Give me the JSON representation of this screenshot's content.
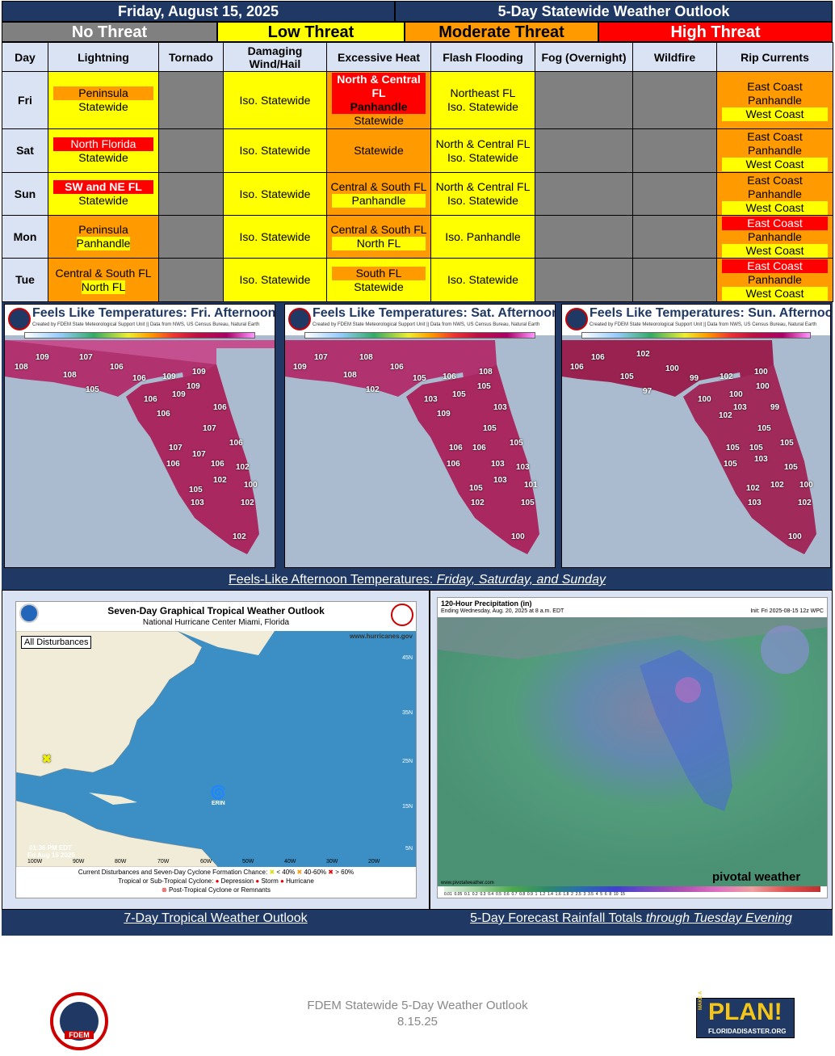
{
  "header": {
    "date": "Friday, August 15, 2025",
    "title": "5-Day Statewide Weather Outlook"
  },
  "legend": {
    "none": "No Threat",
    "low": "Low Threat",
    "moderate": "Moderate Threat",
    "high": "High Threat"
  },
  "colors": {
    "none": "#808080",
    "low": "#ffff00",
    "moderate": "#ff9a00",
    "high": "#ff0000",
    "navy": "#1f3864"
  },
  "columns": [
    "Day",
    "Lightning",
    "Tornado",
    "Damaging Wind/Hail",
    "Excessive Heat",
    "Flash Flooding",
    "Fog (Overnight)",
    "Wildfire",
    "Rip Currents"
  ],
  "rows": [
    {
      "day": "Fri",
      "lightning": [
        "Peninsula",
        "Statewide"
      ],
      "wind": "Iso. Statewide",
      "heat": [
        "North & Central FL",
        "Panhandle",
        "Statewide"
      ],
      "flood": [
        "Northeast FL",
        "Iso. Statewide"
      ],
      "rip": [
        "East Coast",
        "Panhandle",
        "West Coast"
      ]
    },
    {
      "day": "Sat",
      "lightning": [
        "North Florida",
        "Statewide"
      ],
      "wind": "Iso. Statewide",
      "heat": [
        "Statewide"
      ],
      "flood": [
        "North & Central FL",
        "Iso. Statewide"
      ],
      "rip": [
        "East Coast",
        "Panhandle",
        "West Coast"
      ]
    },
    {
      "day": "Sun",
      "lightning": [
        "SW and NE FL",
        "Statewide"
      ],
      "wind": "Iso. Statewide",
      "heat": [
        "Central & South FL",
        "Panhandle"
      ],
      "flood": [
        "North & Central FL",
        "Iso. Statewide"
      ],
      "rip": [
        "East Coast",
        "Panhandle",
        "West Coast"
      ]
    },
    {
      "day": "Mon",
      "lightning": [
        "Peninsula",
        "Panhandle"
      ],
      "wind": "Iso. Statewide",
      "heat": [
        "Central & South FL",
        "North FL"
      ],
      "flood": [
        "Iso. Panhandle"
      ],
      "rip": [
        "East Coast",
        "Panhandle",
        "West Coast"
      ]
    },
    {
      "day": "Tue",
      "lightning": [
        "Central & South FL",
        "North FL"
      ],
      "wind": "Iso. Statewide",
      "heat": [
        "South FL",
        "Statewide"
      ],
      "flood": [
        "Iso. Statewide"
      ],
      "rip": [
        "East Coast",
        "Panhandle",
        "West Coast"
      ]
    }
  ],
  "feels_like": {
    "subtitle": "Created by FDEM State Meteorological Support Unit || Data from NWS, US Census Bureau, Natural Earth",
    "scale": [
      "0",
      "10",
      "20",
      "30",
      "40",
      "50",
      "60",
      "70",
      "80",
      "90",
      "100",
      "110"
    ],
    "fri": {
      "title": "Feels Like Temperatures: Fri. Afternoon"
    },
    "sat": {
      "title": "Feels Like Temperatures: Sat. Afternoon"
    },
    "sun": {
      "title": "Feels Like Temperatures: Sun. Afternoon"
    },
    "caption_main": "Feels-Like Afternoon Temperatures: ",
    "caption_days": "Friday, Saturday, and Sunday"
  },
  "tropical": {
    "title": "Seven-Day Graphical Tropical Weather Outlook",
    "subtitle": "National Hurricane Center  Miami, Florida",
    "tab": "All Disturbances",
    "site": "www.hurricanes.gov",
    "time": "01:36 PM EDT",
    "date": "Fri Aug 15 2025",
    "storm": "ERIN",
    "lats": [
      "45N",
      "35N",
      "25N",
      "15N",
      "5N"
    ],
    "lons": [
      "100W",
      "90W",
      "80W",
      "70W",
      "60W",
      "50W",
      "40W",
      "30W",
      "20W"
    ],
    "legend1": "Current Disturbances and Seven-Day Cyclone Formation Chance:",
    "leg_low": "< 40%",
    "leg_mid": "40-60%",
    "leg_high": "> 60%",
    "legend2": "Tropical or Sub-Tropical Cyclone:",
    "leg_dep": "Depression",
    "leg_storm": "Storm",
    "leg_hur": "Hurricane",
    "legend3": "Post-Tropical Cyclone or Remnants",
    "caption": "7-Day Tropical Weather Outlook"
  },
  "rain": {
    "title": "120-Hour Precipitation (in)",
    "subtitle": "Ending Wednesday, Aug. 20, 2025 at 8 a.m. EDT",
    "init": "Init: Fri 2025-08-15 12z WPC",
    "brand": "pivotal weather",
    "site": "www.pivotalweather.com",
    "scale": [
      "0.01",
      "0.05",
      "0.1",
      "0.2",
      "0.3",
      "0.4",
      "0.5",
      "0.6",
      "0.7",
      "0.8",
      "0.9",
      "1",
      "1.2",
      "1.4",
      "1.6",
      "1.8",
      "2",
      "2.5",
      "3",
      "3.5",
      "4",
      "5",
      "6",
      "8",
      "10",
      "15"
    ],
    "caption_main": "5-Day Forecast Rainfall Totals ",
    "caption_em": "through Tuesday Evening"
  },
  "footer": {
    "line1": "FDEM Statewide 5-Day Weather Outlook",
    "line2": "8.15.25",
    "logo_text": "FDEM",
    "plan_word": "PLAN!",
    "plan_side": "MAKE A",
    "plan_site": "FLORIDADISASTER.ORG"
  }
}
